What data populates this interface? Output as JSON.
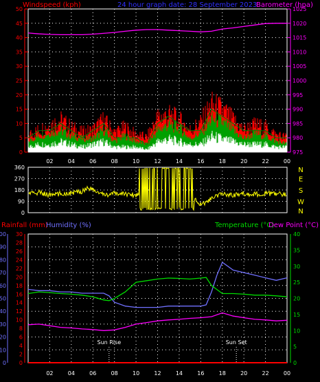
{
  "header": {
    "windspeed_label": "Windspeed (kph)",
    "title": "24 hour graph date: 28 September 2023",
    "barometer_label": "Barometer (hpa)"
  },
  "lower_header": {
    "rainfall_label": "Rainfall (mm)",
    "humidity_label": "Humidity (%)",
    "temperature_label": "Temperature (°C)",
    "dewpoint_label": "Dew Point (°C)"
  },
  "colors": {
    "windspeed": "#ff0000",
    "windgust": "#ff0000",
    "windavg": "#008000",
    "windlow": "#ffffff",
    "barometer": "#ff00ff",
    "direction": "#ffff00",
    "rainfall": "#ff0000",
    "humidity": "#7070ff",
    "temperature": "#00dd00",
    "dewpoint": "#ff00ff",
    "grid": "#ffffff",
    "axis_text": "#ffffff"
  },
  "chart_data": [
    {
      "type": "line",
      "name": "wind_barometer",
      "x_ticks": [
        "02",
        "04",
        "06",
        "08",
        "10",
        "12",
        "14",
        "16",
        "18",
        "20",
        "22",
        "00"
      ],
      "wind_axis": {
        "ticks": [
          0,
          5,
          10,
          15,
          20,
          25,
          30,
          35,
          40,
          45,
          50
        ],
        "ylim": [
          0,
          50
        ]
      },
      "baro_axis": {
        "ticks": [
          975,
          980,
          985,
          990,
          995,
          1000,
          1005,
          1010,
          1015,
          1020,
          1025
        ],
        "ylim": [
          975,
          1025
        ]
      },
      "x_range_hours": [
        0,
        24
      ],
      "series": [
        {
          "name": "Barometer (hpa)",
          "x": [
            0,
            1,
            2,
            3,
            4,
            5,
            6,
            7,
            8,
            9,
            10,
            11,
            12,
            13,
            14,
            15,
            16,
            17,
            18,
            19,
            20,
            21,
            22,
            23,
            24
          ],
          "values": [
            1016.6,
            1016.3,
            1016.1,
            1016,
            1016,
            1016,
            1016.2,
            1016.5,
            1016.8,
            1017.2,
            1017.6,
            1017.8,
            1017.8,
            1017.6,
            1017.4,
            1017.2,
            1017,
            1017.2,
            1018,
            1018.4,
            1018.9,
            1019.4,
            1019.9,
            1020,
            1020
          ]
        },
        {
          "name": "Windspeed (kph)",
          "x": [
            0,
            1,
            2,
            3,
            4,
            5,
            6,
            7,
            8,
            9,
            10,
            11,
            12,
            13,
            14,
            15,
            16,
            17,
            18,
            19,
            20,
            21,
            22,
            23,
            24
          ],
          "values": [
            4,
            6,
            7,
            8,
            6,
            5,
            5,
            8,
            4,
            6,
            4,
            3,
            8,
            10,
            9,
            5,
            7,
            12,
            11,
            8,
            5,
            7,
            6,
            4,
            3
          ]
        },
        {
          "name": "Wind gust",
          "x": [
            0,
            1,
            2,
            3,
            4,
            5,
            6,
            7,
            8,
            9,
            10,
            11,
            12,
            13,
            14,
            15,
            16,
            17,
            18,
            19,
            20,
            21,
            22,
            23,
            24
          ],
          "values": [
            7,
            9,
            11,
            13,
            10,
            8,
            9,
            13,
            8,
            10,
            7,
            6,
            14,
            15,
            13,
            9,
            12,
            19,
            17,
            13,
            9,
            11,
            10,
            7,
            6
          ]
        },
        {
          "name": "Wind average",
          "x": [
            0,
            1,
            2,
            3,
            4,
            5,
            6,
            7,
            8,
            9,
            10,
            11,
            12,
            13,
            14,
            15,
            16,
            17,
            18,
            19,
            20,
            21,
            22,
            23,
            24
          ],
          "values": [
            2,
            3,
            3,
            4,
            3,
            2,
            3,
            4,
            2,
            2,
            2,
            1,
            4,
            5,
            4,
            3,
            3,
            6,
            5,
            4,
            3,
            3,
            3,
            2,
            2
          ]
        }
      ]
    },
    {
      "type": "line",
      "name": "wind_direction",
      "y_ticks": [
        0,
        90,
        180,
        270,
        360
      ],
      "ylim": [
        0,
        360
      ],
      "compass_labels": [
        "N",
        "W",
        "S",
        "E",
        "N"
      ],
      "x_range_hours": [
        0,
        24
      ],
      "series": [
        {
          "name": "Wind direction",
          "x": [
            0,
            1,
            2,
            3,
            4,
            5,
            5.5,
            6,
            7,
            8,
            9,
            10,
            10.5,
            11,
            11.5,
            12,
            12.5,
            13,
            13.5,
            14,
            14.5,
            15,
            15.5,
            16,
            17,
            18,
            19,
            20,
            21,
            22,
            23,
            24
          ],
          "values": [
            150,
            160,
            140,
            150,
            155,
            170,
            200,
            180,
            140,
            150,
            150,
            140,
            150,
            40,
            340,
            30,
            350,
            60,
            320,
            40,
            300,
            50,
            100,
            60,
            110,
            150,
            140,
            150,
            145,
            150,
            150,
            145
          ]
        }
      ]
    },
    {
      "type": "line",
      "name": "temperature_humidity_rain",
      "x_ticks": [
        "02",
        "04",
        "06",
        "08",
        "10",
        "12",
        "14",
        "16",
        "18",
        "20",
        "22",
        "00"
      ],
      "humidity_axis": {
        "ticks": [
          0,
          10,
          20,
          30,
          40,
          50,
          60,
          70,
          80,
          90,
          100
        ],
        "ylim": [
          0,
          100
        ]
      },
      "rain_axis": {
        "ticks": [
          0,
          2,
          4,
          6,
          8,
          10,
          12,
          14,
          16,
          18,
          20,
          22,
          24,
          26,
          28,
          30
        ],
        "ylim": [
          0,
          30
        ]
      },
      "temp_axis": {
        "ticks": [
          0,
          5,
          10,
          15,
          20,
          25,
          30,
          35,
          40
        ],
        "ylim": [
          0,
          40
        ]
      },
      "annotations": [
        {
          "text": "Sun Rise",
          "x": 7.5
        },
        {
          "text": "Sun Set",
          "x": 19.3
        }
      ],
      "x_range_hours": [
        0,
        24
      ],
      "series": [
        {
          "name": "Humidity (%)",
          "x": [
            0,
            1,
            2,
            3,
            4,
            5,
            6,
            7,
            7.5,
            8,
            9,
            10,
            11,
            12,
            13,
            14,
            15,
            16,
            16.5,
            17,
            17.5,
            18,
            19,
            20,
            21,
            22,
            23,
            24
          ],
          "values": [
            57,
            56,
            56,
            55,
            55,
            54,
            54,
            54,
            52,
            47,
            44,
            43,
            43,
            43,
            44,
            44,
            44,
            44,
            45,
            55,
            68,
            78,
            72,
            70,
            68,
            66,
            64,
            66
          ]
        },
        {
          "name": "Temperature (°C)",
          "x": [
            0,
            1,
            2,
            3,
            4,
            5,
            6,
            7,
            7.5,
            8,
            9,
            10,
            11,
            12,
            13,
            14,
            15,
            16,
            16.5,
            17,
            18,
            19,
            20,
            21,
            22,
            23,
            24
          ],
          "values": [
            21.5,
            22,
            21.8,
            21.5,
            21.3,
            21,
            20.5,
            19.5,
            19.3,
            20,
            22,
            25,
            25.5,
            26,
            26.3,
            26.2,
            26,
            26.3,
            26.5,
            24,
            21.5,
            21.5,
            21.3,
            21,
            21,
            20.8,
            20.5
          ]
        },
        {
          "name": "Dew Point (°C)",
          "x": [
            0,
            1,
            2,
            3,
            4,
            5,
            6,
            7,
            8,
            9,
            10,
            11,
            12,
            13,
            14,
            15,
            16,
            17,
            18,
            19,
            20,
            21,
            22,
            23,
            24
          ],
          "values": [
            11.8,
            12,
            11.5,
            11,
            10.8,
            10.5,
            10.3,
            10,
            10.2,
            11,
            12,
            12.5,
            13,
            13.3,
            13.5,
            13.8,
            14,
            14.3,
            15.5,
            14.5,
            14,
            13.5,
            13.3,
            13,
            13.2
          ]
        },
        {
          "name": "Rainfall (mm)",
          "x": [
            0,
            24
          ],
          "values": [
            0,
            0
          ]
        }
      ]
    }
  ]
}
